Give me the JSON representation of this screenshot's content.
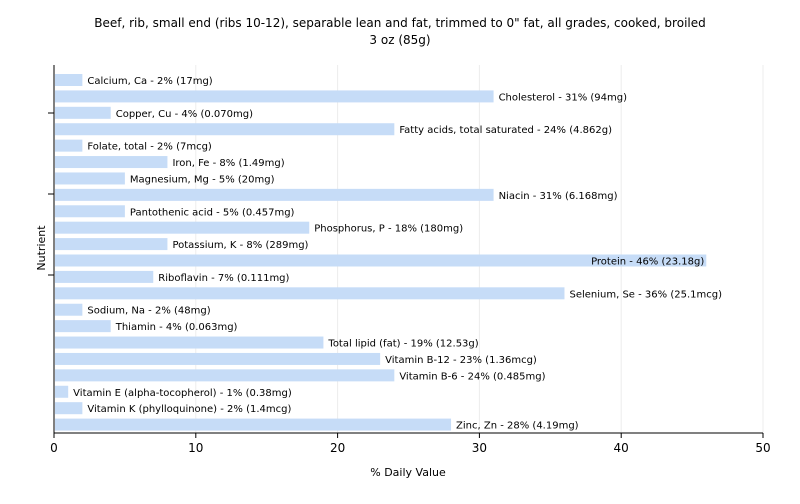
{
  "chart_data": {
    "type": "bar",
    "orientation": "horizontal",
    "title": "Beef, rib, small end (ribs 10-12), separable lean and fat, trimmed to 0\" fat, all grades, cooked, broiled",
    "subtitle": "3 oz (85g)",
    "xlabel": "% Daily Value",
    "ylabel": "Nutrient",
    "xlim": [
      0,
      50
    ],
    "xticks": [
      0,
      10,
      20,
      30,
      40,
      50
    ],
    "grid": true,
    "bar_color": "#c6dcf7",
    "categories": [
      "Calcium, Ca",
      "Cholesterol",
      "Copper, Cu",
      "Fatty acids, total saturated",
      "Folate, total",
      "Iron, Fe",
      "Magnesium, Mg",
      "Niacin",
      "Pantothenic acid",
      "Phosphorus, P",
      "Potassium, K",
      "Protein",
      "Riboflavin",
      "Selenium, Se",
      "Sodium, Na",
      "Thiamin",
      "Total lipid (fat)",
      "Vitamin B-12",
      "Vitamin B-6",
      "Vitamin E (alpha-tocopherol)",
      "Vitamin K (phylloquinone)",
      "Zinc, Zn"
    ],
    "values": [
      2,
      31,
      4,
      24,
      2,
      8,
      5,
      31,
      5,
      18,
      8,
      46,
      7,
      36,
      2,
      4,
      19,
      23,
      24,
      1,
      2,
      28
    ],
    "labels": [
      "Calcium, Ca - 2% (17mg)",
      "Cholesterol - 31% (94mg)",
      "Copper, Cu - 4% (0.070mg)",
      "Fatty acids, total saturated - 24% (4.862g)",
      "Folate, total - 2% (7mcg)",
      "Iron, Fe - 8% (1.49mg)",
      "Magnesium, Mg - 5% (20mg)",
      "Niacin - 31% (6.168mg)",
      "Pantothenic acid - 5% (0.457mg)",
      "Phosphorus, P - 18% (180mg)",
      "Potassium, K - 8% (289mg)",
      "Protein - 46% (23.18g)",
      "Riboflavin - 7% (0.111mg)",
      "Selenium, Se - 36% (25.1mcg)",
      "Sodium, Na - 2% (48mg)",
      "Thiamin - 4% (0.063mg)",
      "Total lipid (fat) - 19% (12.53g)",
      "Vitamin B-12 - 23% (1.36mcg)",
      "Vitamin B-6 - 24% (0.485mg)",
      "Vitamin E (alpha-tocopherol) - 1% (0.38mg)",
      "Vitamin K (phylloquinone) - 2% (1.4mcg)",
      "Zinc, Zn - 28% (4.19mg)"
    ]
  }
}
